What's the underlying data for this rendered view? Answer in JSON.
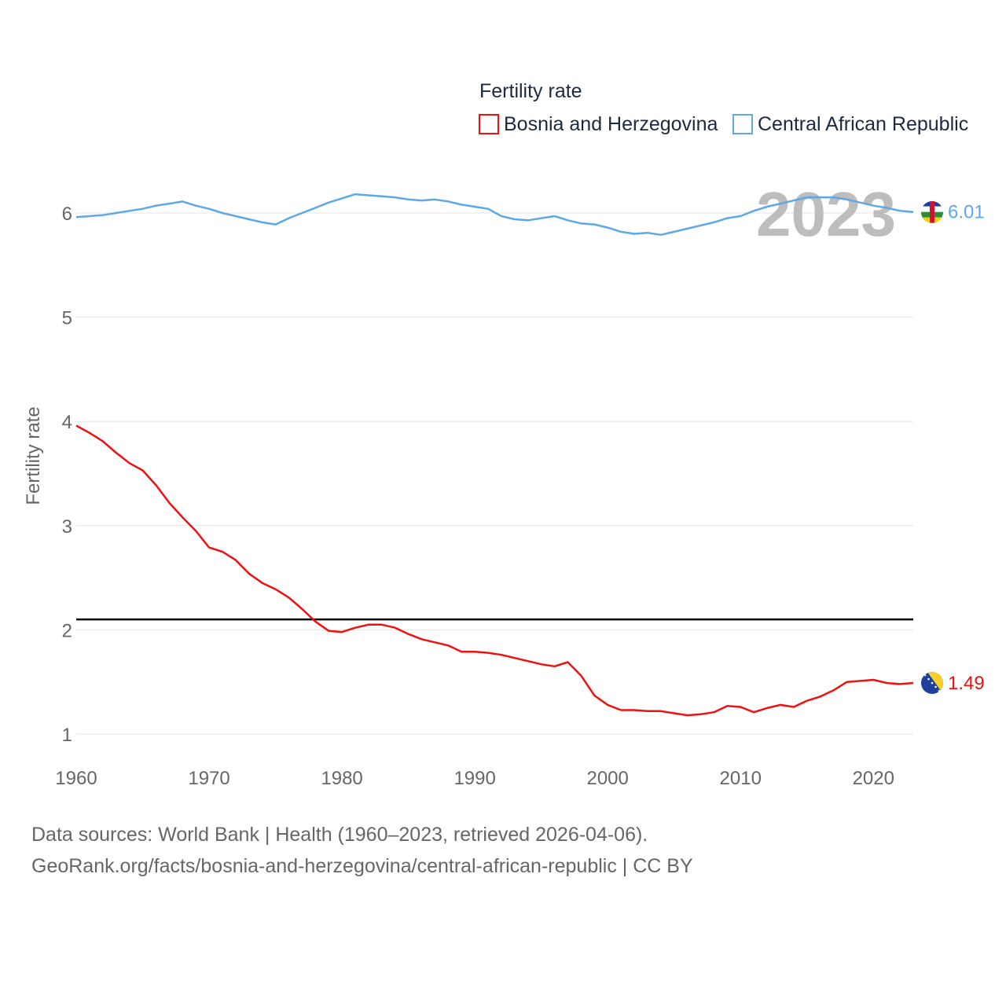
{
  "chart_data": {
    "type": "line",
    "legend_title": "Fertility rate",
    "ylabel": "Fertility rate",
    "xlabel": "",
    "year_watermark": "2023",
    "xlim": [
      1960,
      2023
    ],
    "ylim": [
      0.8,
      6.6
    ],
    "x_ticks": [
      1960,
      1970,
      1980,
      1990,
      2000,
      2010,
      2020
    ],
    "y_ticks": [
      1,
      2,
      3,
      4,
      5,
      6
    ],
    "reference_line": {
      "y": 2.1,
      "color": "#000000"
    },
    "x": [
      1960,
      1961,
      1962,
      1963,
      1964,
      1965,
      1966,
      1967,
      1968,
      1969,
      1970,
      1971,
      1972,
      1973,
      1974,
      1975,
      1976,
      1977,
      1978,
      1979,
      1980,
      1981,
      1982,
      1983,
      1984,
      1985,
      1986,
      1987,
      1988,
      1989,
      1990,
      1991,
      1992,
      1993,
      1994,
      1995,
      1996,
      1997,
      1998,
      1999,
      2000,
      2001,
      2002,
      2003,
      2004,
      2005,
      2006,
      2007,
      2008,
      2009,
      2010,
      2011,
      2012,
      2013,
      2014,
      2015,
      2016,
      2017,
      2018,
      2019,
      2020,
      2021,
      2022,
      2023
    ],
    "series": [
      {
        "name": "Bosnia and Herzegovina",
        "color": "#ee1111",
        "end_label": "1.49",
        "flag": "bosnia-and-herzegovina-flag-icon",
        "values": [
          3.96,
          3.89,
          3.81,
          3.7,
          3.6,
          3.53,
          3.39,
          3.22,
          3.08,
          2.95,
          2.79,
          2.75,
          2.67,
          2.54,
          2.45,
          2.39,
          2.31,
          2.2,
          2.08,
          1.99,
          1.98,
          2.02,
          2.05,
          2.05,
          2.02,
          1.96,
          1.91,
          1.88,
          1.85,
          1.79,
          1.79,
          1.78,
          1.76,
          1.73,
          1.7,
          1.67,
          1.65,
          1.69,
          1.56,
          1.37,
          1.28,
          1.23,
          1.23,
          1.22,
          1.22,
          1.2,
          1.18,
          1.19,
          1.21,
          1.27,
          1.26,
          1.21,
          1.25,
          1.28,
          1.26,
          1.32,
          1.36,
          1.42,
          1.5,
          1.51,
          1.52,
          1.49,
          1.48,
          1.49
        ]
      },
      {
        "name": "Central African Republic",
        "color": "#5ea8e6",
        "end_label": "6.01",
        "flag": "central-african-republic-flag-icon",
        "values": [
          5.96,
          5.97,
          5.98,
          6.0,
          6.02,
          6.04,
          6.07,
          6.09,
          6.11,
          6.07,
          6.04,
          6.0,
          5.97,
          5.94,
          5.91,
          5.89,
          5.95,
          6.0,
          6.05,
          6.1,
          6.14,
          6.18,
          6.17,
          6.16,
          6.15,
          6.13,
          6.12,
          6.13,
          6.11,
          6.08,
          6.06,
          6.04,
          5.97,
          5.94,
          5.93,
          5.95,
          5.97,
          5.93,
          5.9,
          5.89,
          5.86,
          5.82,
          5.8,
          5.81,
          5.79,
          5.82,
          5.85,
          5.88,
          5.91,
          5.95,
          5.97,
          6.02,
          6.06,
          6.09,
          6.12,
          6.15,
          6.15,
          6.15,
          6.13,
          6.1,
          6.07,
          6.05,
          6.02,
          6.01
        ]
      }
    ]
  },
  "footer": {
    "source_line": "Data sources: World Bank | Health (1960–2023, retrieved 2026-04-06).",
    "attribution_line": "GeoRank.org/facts/bosnia-and-herzegovina/central-african-republic | CC BY"
  }
}
